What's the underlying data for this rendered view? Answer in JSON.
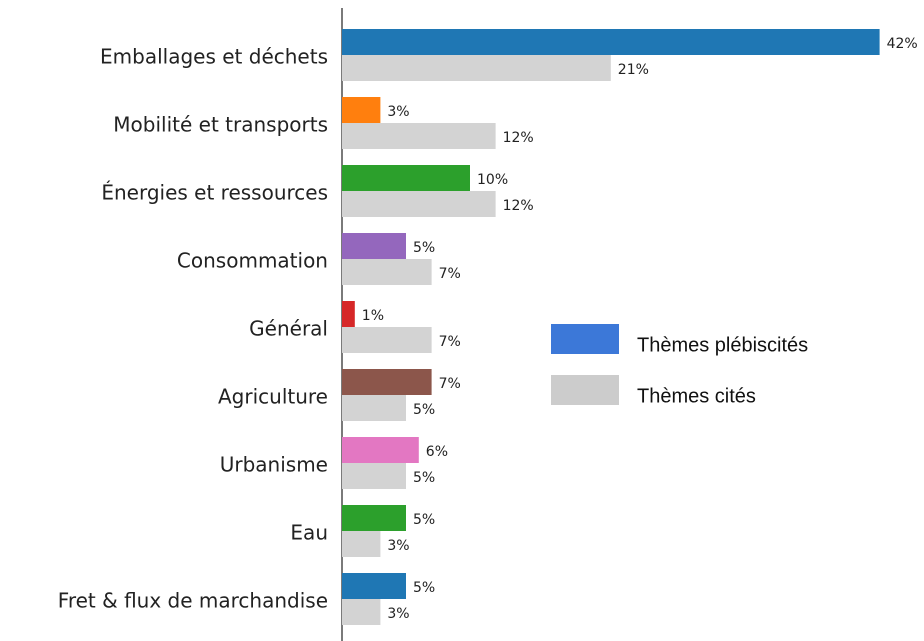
{
  "chart_data": {
    "type": "barh",
    "categories": [
      "Emballages et déchets",
      "Mobilité et transports",
      "Énergies et ressources",
      "Consommation",
      "Général",
      "Agriculture",
      "Urbanisme",
      "Eau",
      "Fret & flux de marchandise"
    ],
    "series": [
      {
        "name": "Thèmes plébiscités",
        "color": "#3c78d8",
        "colors": [
          "#1f77b4",
          "#ff7f0e",
          "#2ca02c",
          "#9467bd",
          "#d62728",
          "#8c564b",
          "#e377c2",
          "#2ca02c",
          "#1f77b4"
        ],
        "values": [
          42,
          3,
          10,
          5,
          1,
          7,
          6,
          5,
          5
        ],
        "value_labels": [
          "42%",
          "3%",
          "10%",
          "5%",
          "1%",
          "7%",
          "6%",
          "5%",
          "5%"
        ]
      },
      {
        "name": "Thèmes cités",
        "color": "#cccccc",
        "colors": [
          "#d3d3d3",
          "#d3d3d3",
          "#d3d3d3",
          "#d3d3d3",
          "#d3d3d3",
          "#d3d3d3",
          "#d3d3d3",
          "#d3d3d3",
          "#d3d3d3"
        ],
        "values": [
          21,
          12,
          12,
          7,
          7,
          5,
          5,
          3,
          3
        ],
        "value_labels": [
          "21%",
          "12%",
          "12%",
          "7%",
          "7%",
          "5%",
          "5%",
          "3%",
          "3%"
        ]
      }
    ],
    "xlim": [
      0,
      45
    ],
    "legend": "right"
  }
}
